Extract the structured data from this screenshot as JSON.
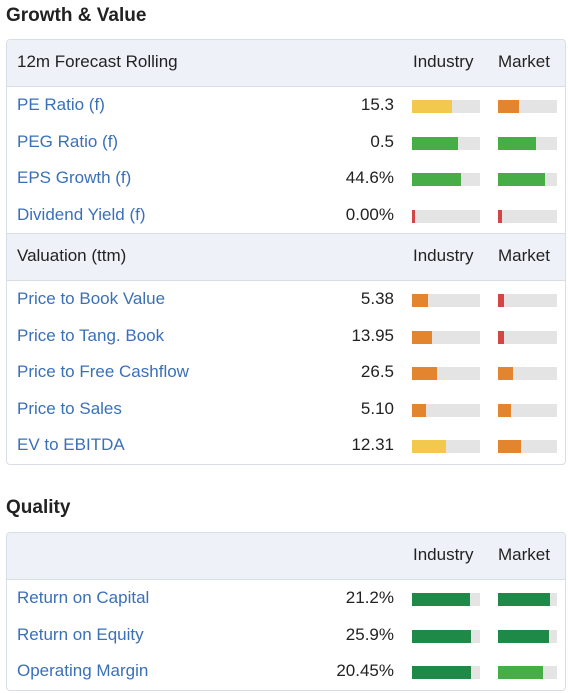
{
  "colors": {
    "yellow": "#f2c94c",
    "orange": "#e3842f",
    "red": "#d64545",
    "green": "#46ad47",
    "darkgreen": "#1f8a47",
    "link": "#3a70b8"
  },
  "growth_value": {
    "title": "Growth & Value",
    "forecast": {
      "header": {
        "label": "12m Forecast Rolling",
        "industry": "Industry",
        "market": "Market"
      },
      "rows": [
        {
          "name": "PE Ratio (f)",
          "value": "15.3",
          "industry": {
            "level": 0.59,
            "color": "yellow"
          },
          "market": {
            "level": 0.36,
            "color": "orange"
          }
        },
        {
          "name": "PEG Ratio (f)",
          "value": "0.5",
          "industry": {
            "level": 0.68,
            "color": "green"
          },
          "market": {
            "level": 0.64,
            "color": "green"
          }
        },
        {
          "name": "EPS Growth (f)",
          "value": "44.6%",
          "industry": {
            "level": 0.72,
            "color": "green"
          },
          "market": {
            "level": 0.8,
            "color": "green"
          }
        },
        {
          "name": "Dividend Yield (f)",
          "value": "0.00%",
          "industry": {
            "level": 0.05,
            "color": "red"
          },
          "market": {
            "level": 0.06,
            "color": "red"
          }
        }
      ]
    },
    "valuation": {
      "header": {
        "label": "Valuation (ttm)",
        "industry": "Industry",
        "market": "Market"
      },
      "rows": [
        {
          "name": "Price to Book Value",
          "value": "5.38",
          "industry": {
            "level": 0.24,
            "color": "orange"
          },
          "market": {
            "level": 0.11,
            "color": "red"
          }
        },
        {
          "name": "Price to Tang. Book",
          "value": "13.95",
          "industry": {
            "level": 0.3,
            "color": "orange"
          },
          "market": {
            "level": 0.1,
            "color": "red"
          }
        },
        {
          "name": "Price to Free Cashflow",
          "value": "26.5",
          "industry": {
            "level": 0.37,
            "color": "orange"
          },
          "market": {
            "level": 0.25,
            "color": "orange"
          }
        },
        {
          "name": "Price to Sales",
          "value": "5.10",
          "industry": {
            "level": 0.21,
            "color": "orange"
          },
          "market": {
            "level": 0.22,
            "color": "orange"
          }
        },
        {
          "name": "EV to EBITDA",
          "value": "12.31",
          "industry": {
            "level": 0.5,
            "color": "yellow"
          },
          "market": {
            "level": 0.39,
            "color": "orange"
          }
        }
      ]
    }
  },
  "quality": {
    "title": "Quality",
    "header": {
      "label": "",
      "industry": "Industry",
      "market": "Market"
    },
    "rows": [
      {
        "name": "Return on Capital",
        "value": "21.2%",
        "industry": {
          "level": 0.85,
          "color": "darkgreen"
        },
        "market": {
          "level": 0.88,
          "color": "darkgreen"
        }
      },
      {
        "name": "Return on Equity",
        "value": "25.9%",
        "industry": {
          "level": 0.87,
          "color": "darkgreen"
        },
        "market": {
          "level": 0.86,
          "color": "darkgreen"
        }
      },
      {
        "name": "Operating Margin",
        "value": "20.45%",
        "industry": {
          "level": 0.87,
          "color": "darkgreen"
        },
        "market": {
          "level": 0.76,
          "color": "green"
        }
      }
    ]
  }
}
